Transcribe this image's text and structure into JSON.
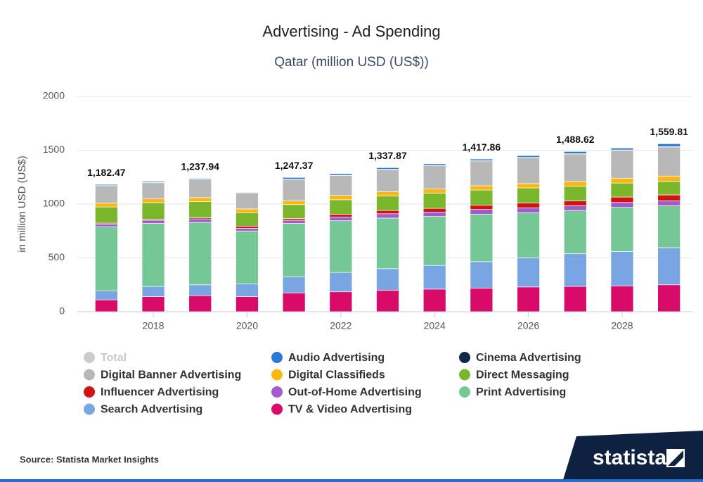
{
  "chart_data": {
    "type": "stacked-bar",
    "title": "Advertising - Ad Spending",
    "subtitle": "Qatar (million USD (US$))",
    "y_label": "in million USD (US$)",
    "categories": [
      null,
      "2018",
      null,
      "2020",
      null,
      "2022",
      null,
      "2024",
      null,
      "2026",
      null,
      "2028",
      null
    ],
    "ylim": [
      0,
      2000
    ],
    "yticks": [
      0,
      500,
      1000,
      1500,
      2000
    ],
    "grid": true,
    "series": [
      {
        "name": "Total",
        "color": "#cccccc",
        "hidden": true,
        "values": [
          1182.47,
          null,
          1237.94,
          null,
          1247.37,
          null,
          1337.87,
          null,
          1417.86,
          null,
          1488.62,
          null,
          1559.81
        ],
        "value_labels": [
          "1,182.47",
          null,
          "1,237.94",
          null,
          "1,247.37",
          null,
          "1,337.87",
          null,
          "1,417.86",
          null,
          "1,488.62",
          null,
          "1,559.81"
        ]
      },
      {
        "name": "Audio Advertising",
        "color": "#2b79d6",
        "values": [
          10,
          10,
          10,
          5,
          15,
          15,
          15,
          15,
          15,
          17,
          20,
          17,
          27
        ]
      },
      {
        "name": "Cinema Advertising",
        "color": "#0e2a47",
        "values": [
          3,
          3,
          3,
          2,
          2,
          3,
          3,
          3,
          3,
          3,
          3,
          3,
          3
        ]
      },
      {
        "name": "Digital Banner Advertising",
        "color": "#b8b8b8",
        "values": [
          161,
          150,
          165,
          150,
          200,
          185,
          205,
          215,
          230,
          240,
          255,
          260,
          270
        ]
      },
      {
        "name": "Digital Classifieds",
        "color": "#fbb613",
        "values": [
          35,
          35,
          38,
          35,
          35,
          40,
          40,
          40,
          40,
          40,
          45,
          45,
          50
        ]
      },
      {
        "name": "Direct Messaging",
        "color": "#7ab72c",
        "values": [
          150,
          155,
          150,
          125,
          130,
          135,
          135,
          140,
          140,
          140,
          135,
          130,
          125
        ]
      },
      {
        "name": "Influencer Advertising",
        "color": "#d4120f",
        "values": [
          8,
          8,
          10,
          20,
          15,
          25,
          30,
          35,
          40,
          45,
          45,
          50,
          55
        ]
      },
      {
        "name": "Out-of-Home Advertising",
        "color": "#a25bcd",
        "values": [
          25,
          30,
          32,
          25,
          30,
          35,
          40,
          40,
          45,
          45,
          45,
          45,
          45
        ]
      },
      {
        "name": "Print Advertising",
        "color": "#75c795",
        "values": [
          595,
          585,
          580,
          490,
          495,
          480,
          470,
          455,
          440,
          420,
          400,
          410,
          390
        ]
      },
      {
        "name": "Search Advertising",
        "color": "#79a6e2",
        "values": [
          85,
          95,
          100,
          120,
          150,
          180,
          200,
          220,
          245,
          270,
          305,
          320,
          345
        ]
      },
      {
        "name": "TV & Video Advertising",
        "color": "#d80b6b",
        "values": [
          110,
          140,
          150,
          140,
          175,
          185,
          200,
          210,
          220,
          230,
          235,
          240,
          250
        ]
      }
    ],
    "source": "Source: Statista Market Insights",
    "brand": "statista"
  }
}
